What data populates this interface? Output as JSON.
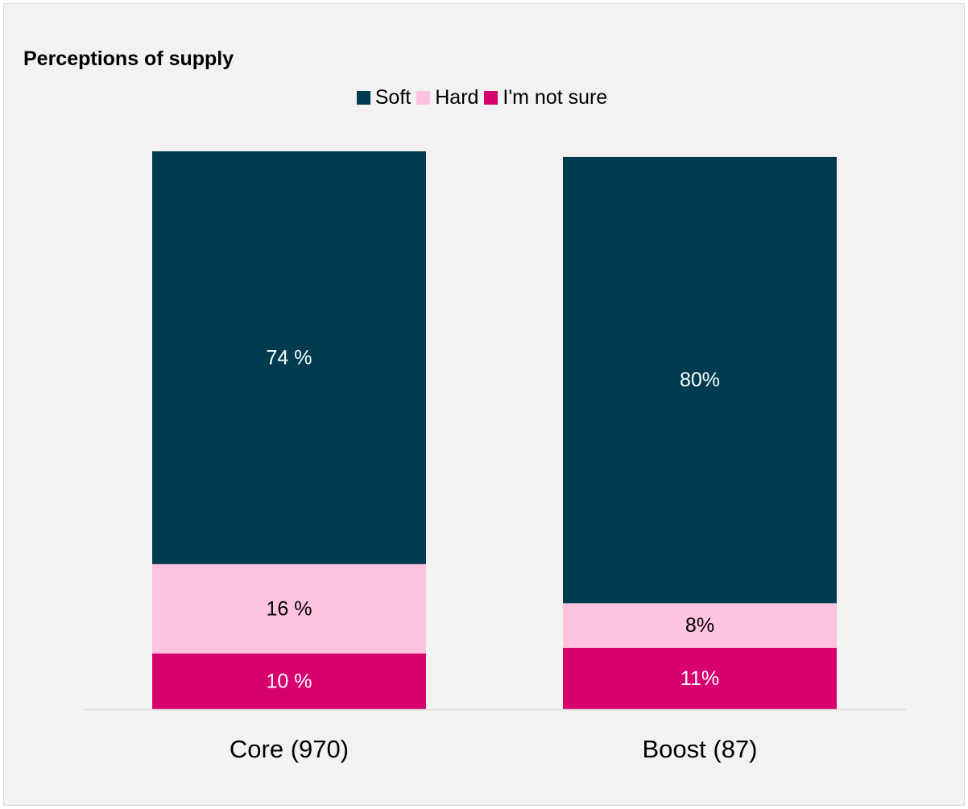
{
  "chart_data": {
    "type": "bar",
    "stacked": true,
    "title": "Perceptions of supply",
    "categories": [
      "Core (970)",
      "Boost (87)"
    ],
    "series": [
      {
        "name": "I'm not sure",
        "color": "#d6006f",
        "label_color": "#ffffff",
        "values": [
          10,
          11
        ],
        "labels": [
          "10 %",
          "11%"
        ]
      },
      {
        "name": "Hard",
        "color": "#ffc2e0",
        "label_color": "#000000",
        "values": [
          16,
          8
        ],
        "labels": [
          "16 %",
          "8%"
        ]
      },
      {
        "name": "Soft",
        "color": "#003b4f",
        "label_color": "#ffffff",
        "values": [
          74,
          80
        ],
        "labels": [
          "74 %",
          "80%"
        ]
      }
    ],
    "legend_order": [
      "Soft",
      "Hard",
      "I'm not sure"
    ],
    "legend_position": "top",
    "ylim": [
      0,
      100
    ],
    "grid": false,
    "xlabel": "",
    "ylabel": ""
  }
}
